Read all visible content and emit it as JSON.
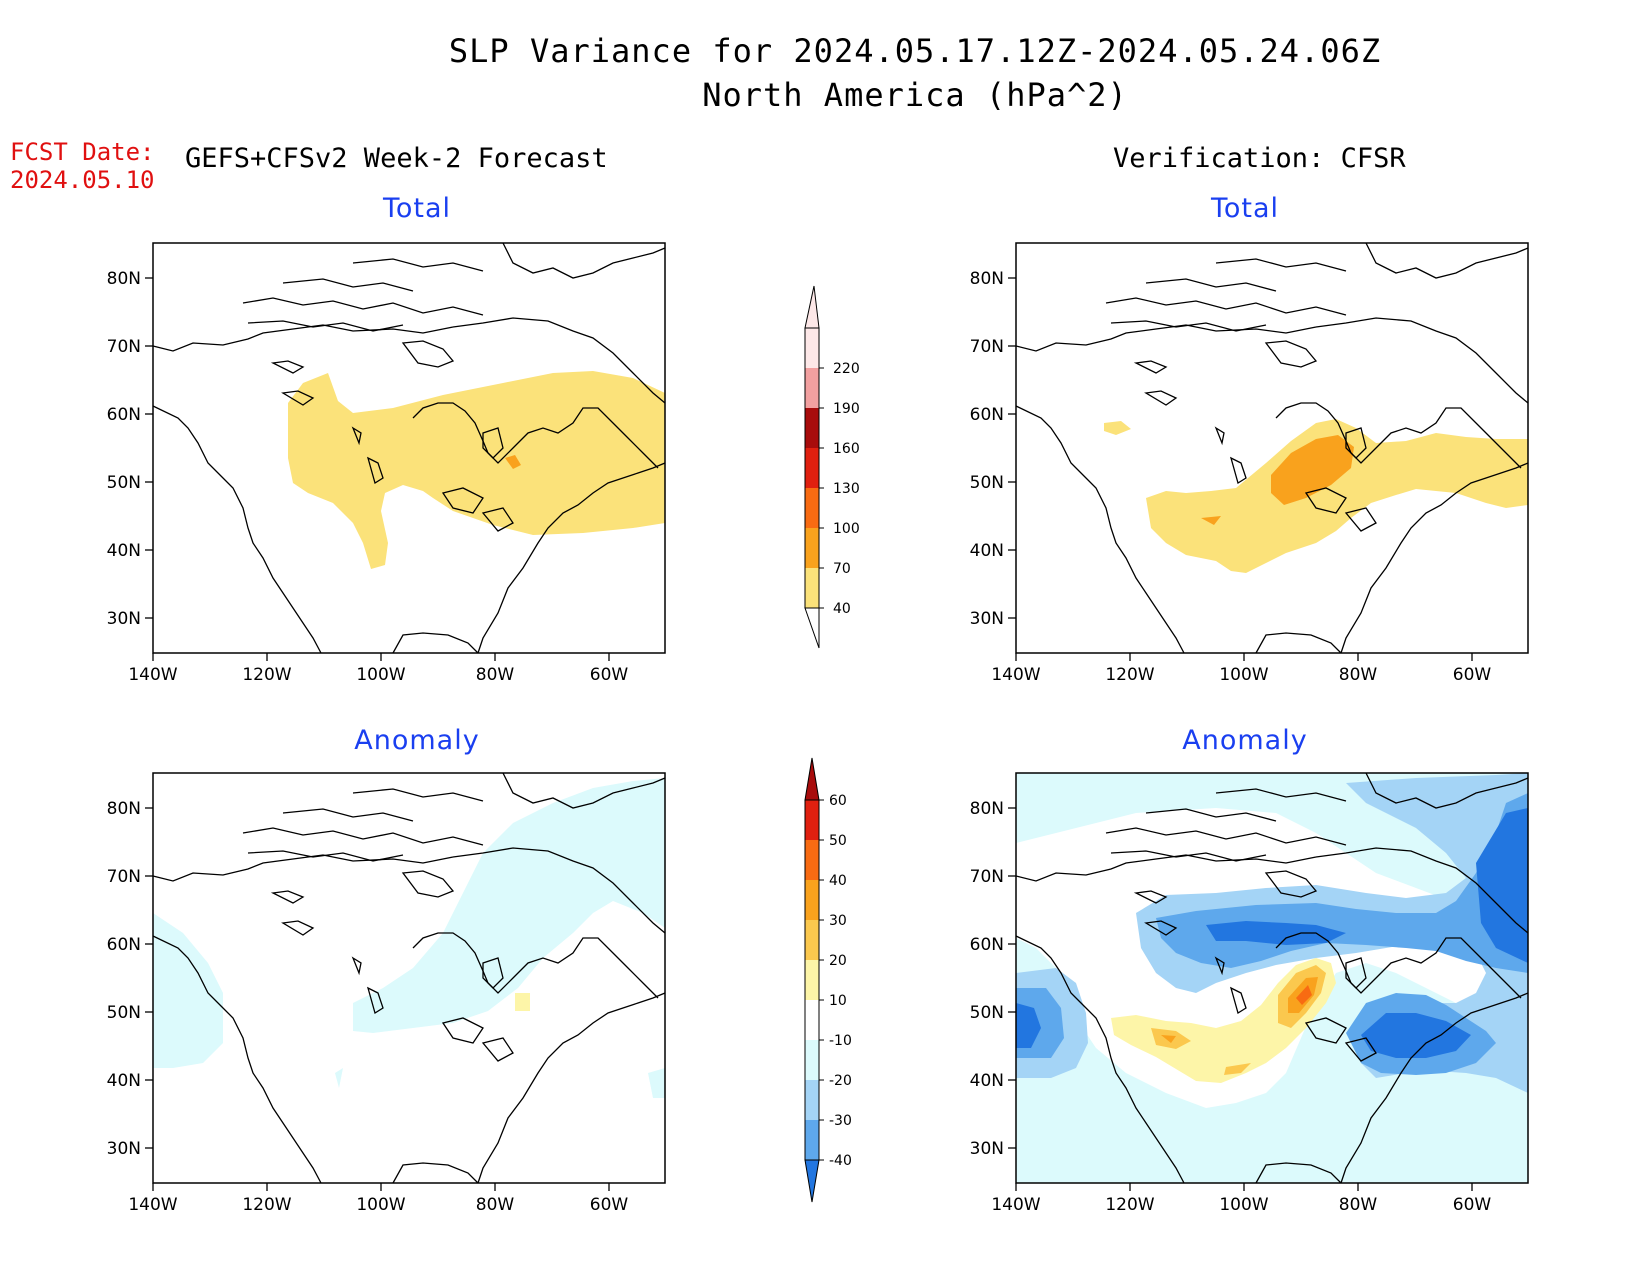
{
  "title": {
    "line1": "SLP Variance for 2024.05.17.12Z-2024.05.24.06Z",
    "line2": "North America (hPa^2)"
  },
  "forecast_date": {
    "label": "FCST Date:",
    "value": "2024.05.10"
  },
  "columns": {
    "left": "GEFS+CFSv2 Week-2 Forecast",
    "right": "Verification: CFSR"
  },
  "panels": {
    "forecast_total": {
      "title": "Total"
    },
    "verification_total": {
      "title": "Total"
    },
    "forecast_anomaly": {
      "title": "Anomaly"
    },
    "verification_anomaly": {
      "title": "Anomaly"
    }
  },
  "axes": {
    "lat_ticks": [
      "80N",
      "70N",
      "60N",
      "50N",
      "40N",
      "30N"
    ],
    "lon_ticks": [
      "140W",
      "120W",
      "100W",
      "80W",
      "60W"
    ]
  },
  "total_colorbar": {
    "levels": [
      "40",
      "70",
      "100",
      "130",
      "160",
      "190",
      "220"
    ],
    "colors": [
      "#fbe27a",
      "#f9a21d",
      "#f86b12",
      "#e02010",
      "#a80c0c",
      "#f2a0a0",
      "#fde8e8"
    ]
  },
  "anomaly_colorbar": {
    "levels": [
      "60",
      "50",
      "40",
      "30",
      "20",
      "10",
      "-10",
      "-20",
      "-30",
      "-40"
    ],
    "colors": [
      "#a80c0c",
      "#e02010",
      "#f86b12",
      "#f9a21d",
      "#fbc84e",
      "#fdf5a8",
      "#ffffff",
      "#dcfafc",
      "#a4d4f6",
      "#5ea8ec",
      "#2276e0"
    ]
  }
}
